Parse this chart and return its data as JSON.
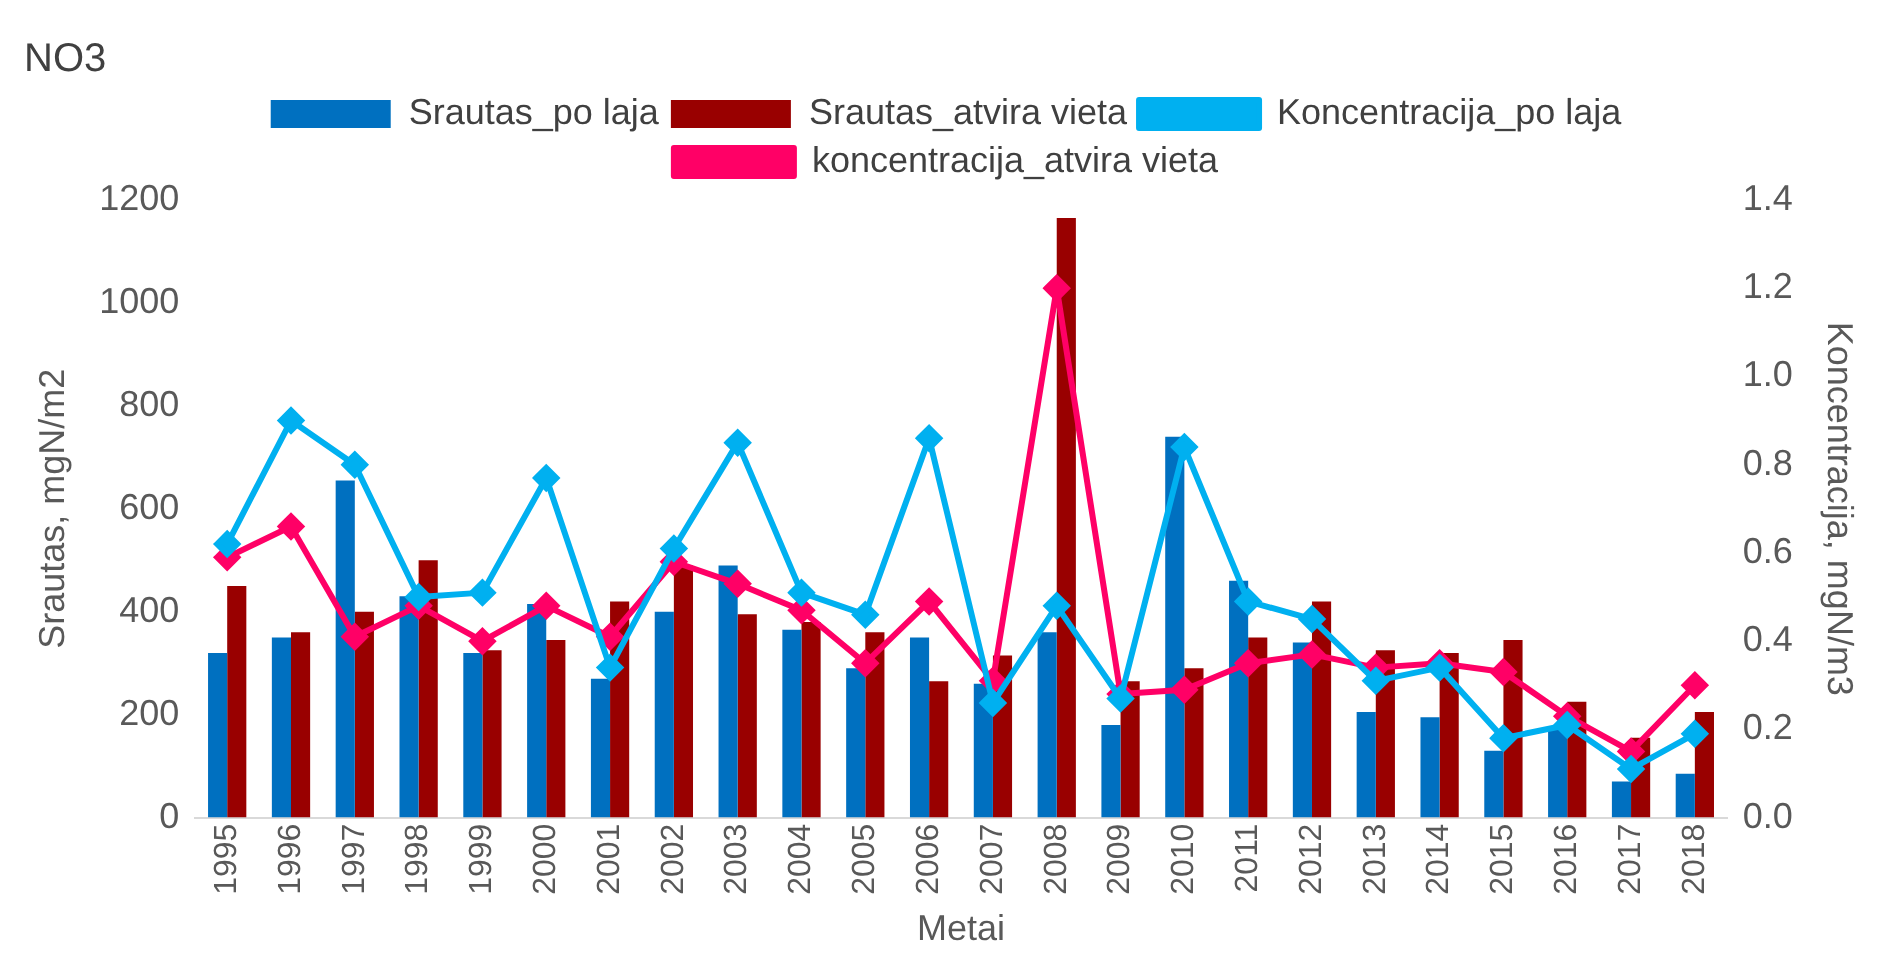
{
  "chart_data": {
    "type": "bar",
    "title": "NO3",
    "xlabel": "Metai",
    "ylabel": "Srautas, mgN/m2",
    "y2label": "Koncentracija, mgN/m3",
    "categories": [
      "1995",
      "1996",
      "1997",
      "1998",
      "1999",
      "2000",
      "2001",
      "2002",
      "2003",
      "2004",
      "2005",
      "2006",
      "2007",
      "2008",
      "2009",
      "2010",
      "2011",
      "2012",
      "2013",
      "2014",
      "2015",
      "2016",
      "2017",
      "2018"
    ],
    "series": [
      {
        "name": "Srautas_po laja",
        "color": "#0070c0",
        "values": [
          320,
          350,
          655,
          430,
          320,
          415,
          270,
          400,
          490,
          365,
          290,
          350,
          260,
          360,
          180,
          740,
          460,
          340,
          205,
          195,
          130,
          170,
          70,
          85
        ]
      },
      {
        "name": "Srautas_atvira vieta",
        "color": "#990000",
        "values": [
          450,
          360,
          400,
          500,
          325,
          345,
          420,
          490,
          395,
          380,
          360,
          265,
          315,
          1165,
          265,
          290,
          350,
          420,
          325,
          320,
          345,
          225,
          155,
          205
        ]
      },
      {
        "name": "Koncentracija_po laja",
        "type": "line",
        "axis": "y2",
        "color": "#00b0f0",
        "values": [
          0.62,
          0.9,
          0.8,
          0.5,
          0.51,
          0.77,
          0.34,
          0.61,
          0.85,
          0.51,
          0.46,
          0.86,
          0.26,
          0.48,
          0.27,
          0.84,
          0.49,
          0.45,
          0.31,
          0.34,
          0.18,
          0.21,
          0.11,
          0.19
        ]
      },
      {
        "name": "koncentracija_atvira vieta",
        "type": "line",
        "axis": "y2",
        "color": "#ff0066",
        "values": [
          0.59,
          0.66,
          0.41,
          0.48,
          0.4,
          0.48,
          0.41,
          0.58,
          0.53,
          0.47,
          0.35,
          0.49,
          0.31,
          1.2,
          0.28,
          0.29,
          0.35,
          0.37,
          0.34,
          0.35,
          0.33,
          0.23,
          0.15,
          0.3
        ]
      }
    ],
    "ylim": [
      0,
      1200
    ],
    "yticks": [
      0,
      200,
      400,
      600,
      800,
      1000,
      1200
    ],
    "y2lim": [
      0,
      1.4
    ],
    "y2ticks": [
      {
        "value": 0,
        "label": "0.0"
      },
      {
        "value": 0.2,
        "label": "0.2"
      },
      {
        "value": 0.4,
        "label": "0.4"
      },
      {
        "value": 0.6,
        "label": "0.6"
      },
      {
        "value": 0.8,
        "label": "0.8"
      },
      {
        "value": 1,
        "label": "1.0"
      },
      {
        "value": 1.2,
        "label": "1.2"
      },
      {
        "value": 1.4,
        "label": "1.4"
      }
    ],
    "grid": false,
    "legend": "top",
    "marker": "diamond",
    "line_style": "solid"
  }
}
